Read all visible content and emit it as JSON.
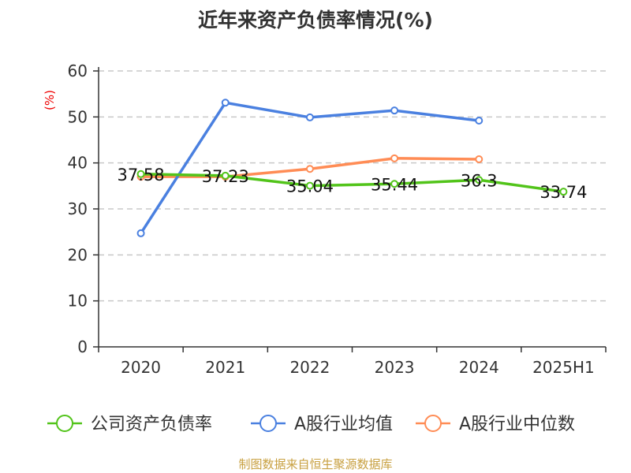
{
  "chart_data": {
    "type": "line",
    "title": "近年来资产负债率情况(%)",
    "ylabel": "(%)",
    "xlabel": "",
    "ylim": [
      0,
      60
    ],
    "yticks": [
      0,
      10,
      20,
      30,
      40,
      50,
      60
    ],
    "grid": true,
    "legend_position": "bottom",
    "categories": [
      "2020",
      "2021",
      "2022",
      "2023",
      "2024",
      "2025H1"
    ],
    "series": [
      {
        "name": "公司资产负债率",
        "color": "#52c41a",
        "values": [
          37.58,
          37.23,
          35.04,
          35.44,
          36.3,
          33.74
        ],
        "labels": [
          "37.58",
          "37.23",
          "35.04",
          "35.44",
          "36.3",
          "33.74"
        ]
      },
      {
        "name": "A股行业均值",
        "color": "#4a80e0",
        "values": [
          24.7,
          53.1,
          49.9,
          51.4,
          49.2,
          null
        ]
      },
      {
        "name": "A股行业中位数",
        "color": "#ff8c55",
        "values": [
          37.0,
          37.0,
          38.7,
          41.0,
          40.8,
          null
        ]
      }
    ]
  },
  "source": "制图数据来自恒生聚源数据库"
}
